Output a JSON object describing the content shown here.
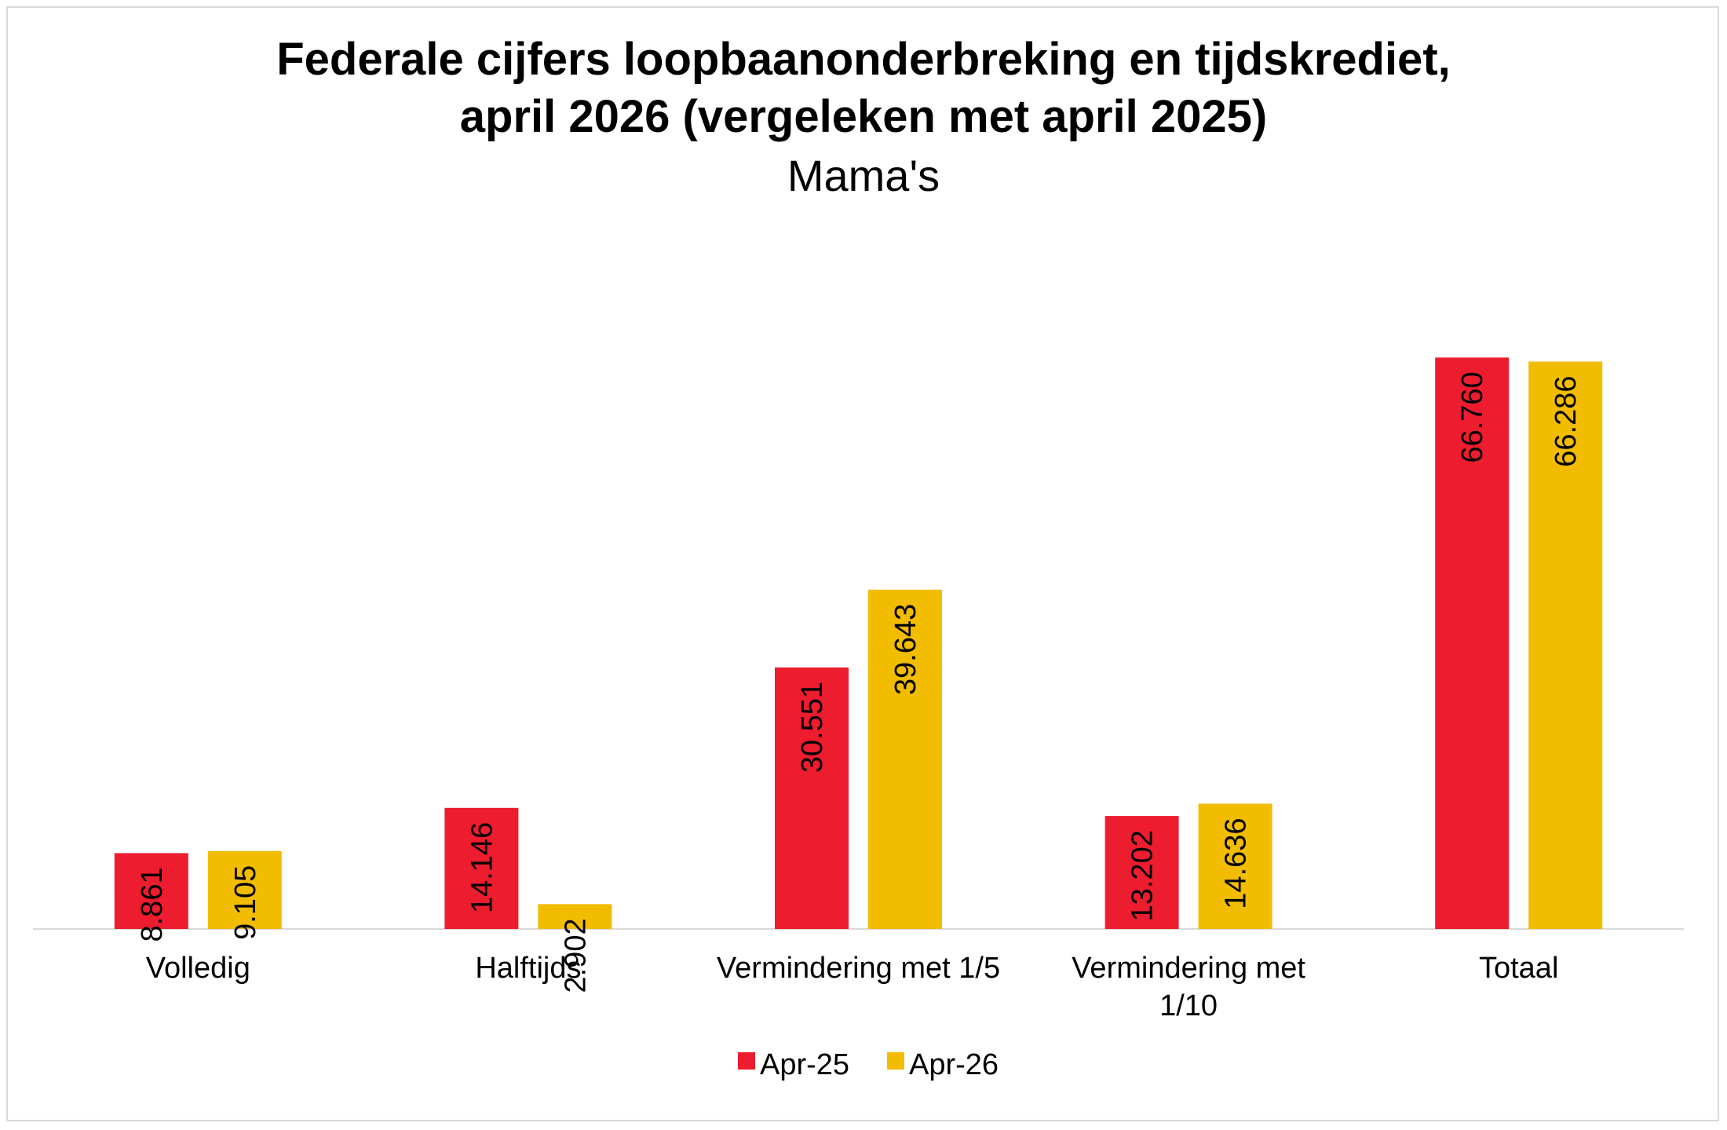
{
  "chart_data": {
    "type": "bar",
    "title": [
      "Federale cijfers loopbaanonderbreking en tijdskrediet,",
      "april 2026 (vergeleken met april 2025)"
    ],
    "subtitle": "Mama's",
    "categories": [
      [
        "Volledig"
      ],
      [
        "Halftijds"
      ],
      [
        "Vermindering met 1/5"
      ],
      [
        "Vermindering met",
        "1/10"
      ],
      [
        "Totaal"
      ]
    ],
    "series": [
      {
        "name": "Apr-25",
        "color": "#ed1c2e",
        "values": [
          8861,
          14146,
          30551,
          13202,
          66760
        ],
        "labels": [
          "8.861",
          "14.146",
          "30.551",
          "13.202",
          "66.760"
        ]
      },
      {
        "name": "Apr-26",
        "color": "#f2bc00",
        "values": [
          9105,
          2902,
          39643,
          14636,
          66286
        ],
        "labels": [
          "9.105",
          "2.902",
          "39.643",
          "14.636",
          "66.286"
        ]
      }
    ],
    "ylim": [
      0,
      80000
    ],
    "grid": false,
    "legend_position": "bottom",
    "data_label_orientation": "vertical"
  }
}
